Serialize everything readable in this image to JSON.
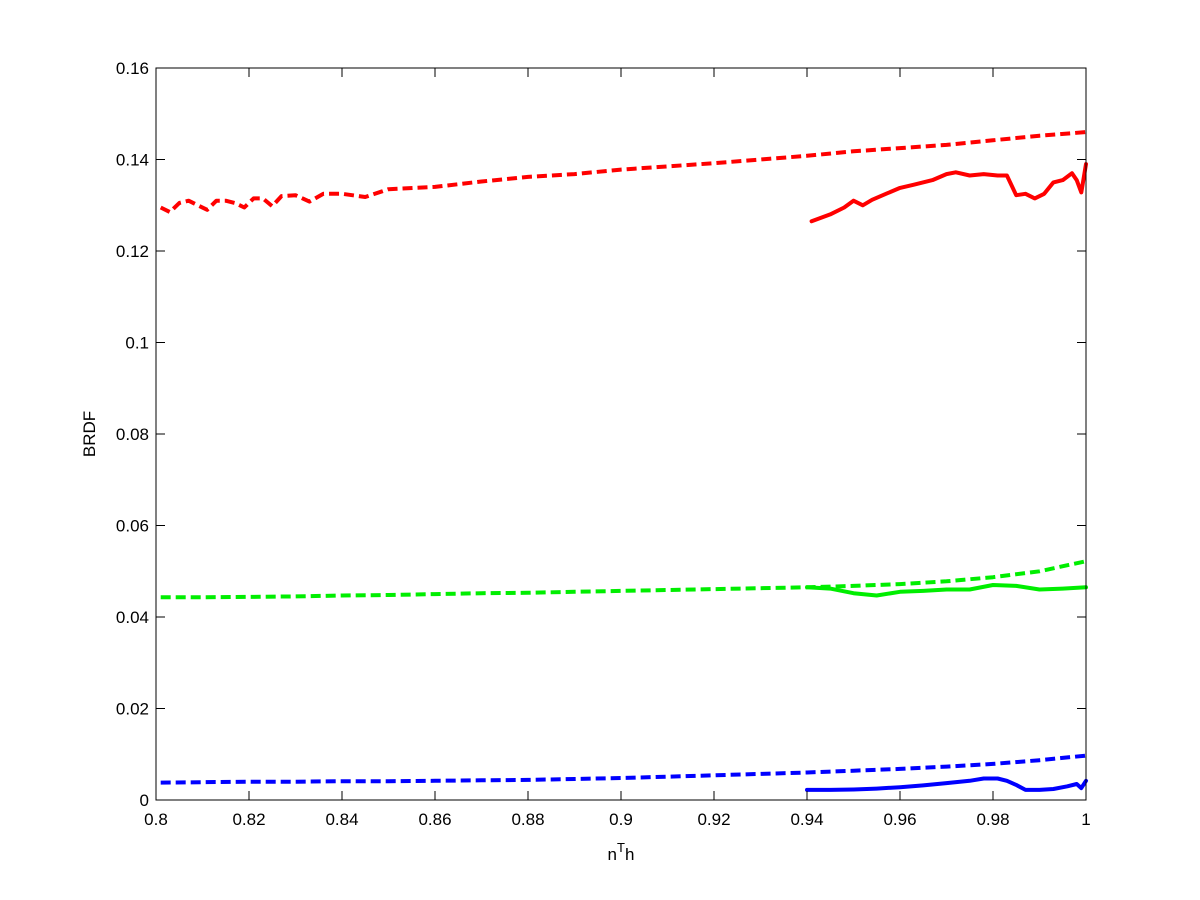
{
  "chart_data": {
    "type": "line",
    "title": "",
    "xlabel_base": "n",
    "xlabel_sup": "T",
    "xlabel_tail": "h",
    "ylabel": "BRDF",
    "xlim": [
      0.8,
      1.0
    ],
    "ylim": [
      0,
      0.16
    ],
    "xticks": [
      0.8,
      0.82,
      0.84,
      0.86,
      0.88,
      0.9,
      0.92,
      0.94,
      0.96,
      0.98,
      1.0
    ],
    "xtick_labels": [
      "0.8",
      "0.82",
      "0.84",
      "0.86",
      "0.88",
      "0.9",
      "0.92",
      "0.94",
      "0.96",
      "0.98",
      "1"
    ],
    "yticks": [
      0,
      0.02,
      0.04,
      0.06,
      0.08,
      0.1,
      0.12,
      0.14,
      0.16
    ],
    "ytick_labels": [
      "0",
      "0.02",
      "0.04",
      "0.06",
      "0.08",
      "0.1",
      "0.12",
      "0.14",
      "0.16"
    ],
    "grid": false,
    "legend": "none",
    "series": [
      {
        "color": "#ff0000",
        "style": "dashed",
        "x": [
          0.801,
          0.803,
          0.805,
          0.807,
          0.809,
          0.811,
          0.813,
          0.815,
          0.817,
          0.819,
          0.821,
          0.823,
          0.825,
          0.827,
          0.83,
          0.833,
          0.836,
          0.84,
          0.845,
          0.85,
          0.86,
          0.87,
          0.88,
          0.89,
          0.9,
          0.91,
          0.92,
          0.93,
          0.94,
          0.95,
          0.96,
          0.97,
          0.98,
          0.99,
          1.0
        ],
        "y": [
          0.1295,
          0.1285,
          0.1305,
          0.131,
          0.13,
          0.129,
          0.131,
          0.131,
          0.1305,
          0.1295,
          0.1315,
          0.1315,
          0.1298,
          0.132,
          0.1322,
          0.1308,
          0.1325,
          0.1325,
          0.1318,
          0.1335,
          0.134,
          0.1352,
          0.1362,
          0.1368,
          0.1378,
          0.1385,
          0.1392,
          0.14,
          0.1408,
          0.1418,
          0.1425,
          0.1432,
          0.1442,
          0.1452,
          0.146
        ]
      },
      {
        "color": "#ff0000",
        "style": "solid",
        "x": [
          0.941,
          0.945,
          0.948,
          0.95,
          0.952,
          0.954,
          0.957,
          0.96,
          0.963,
          0.967,
          0.97,
          0.972,
          0.975,
          0.978,
          0.981,
          0.983,
          0.985,
          0.987,
          0.989,
          0.991,
          0.993,
          0.995,
          0.997,
          0.998,
          0.999,
          1.0
        ],
        "y": [
          0.1265,
          0.128,
          0.1295,
          0.131,
          0.13,
          0.1312,
          0.1325,
          0.1338,
          0.1345,
          0.1355,
          0.1368,
          0.1372,
          0.1365,
          0.1368,
          0.1365,
          0.1365,
          0.1322,
          0.1325,
          0.1315,
          0.1325,
          0.135,
          0.1355,
          0.137,
          0.1355,
          0.1328,
          0.139
        ]
      },
      {
        "color": "#00ee00",
        "style": "dashed",
        "x": [
          0.801,
          0.81,
          0.82,
          0.83,
          0.84,
          0.85,
          0.86,
          0.87,
          0.88,
          0.89,
          0.9,
          0.91,
          0.92,
          0.93,
          0.94,
          0.95,
          0.96,
          0.97,
          0.98,
          0.99,
          1.0
        ],
        "y": [
          0.0443,
          0.0443,
          0.0444,
          0.0445,
          0.0447,
          0.0448,
          0.045,
          0.0452,
          0.0453,
          0.0455,
          0.0457,
          0.0459,
          0.0461,
          0.0463,
          0.0465,
          0.0468,
          0.0472,
          0.0478,
          0.0487,
          0.05,
          0.0522
        ]
      },
      {
        "color": "#00ee00",
        "style": "solid",
        "x": [
          0.94,
          0.945,
          0.95,
          0.955,
          0.96,
          0.965,
          0.97,
          0.975,
          0.98,
          0.985,
          0.99,
          0.995,
          1.0
        ],
        "y": [
          0.0465,
          0.0462,
          0.0452,
          0.0447,
          0.0455,
          0.0457,
          0.046,
          0.046,
          0.047,
          0.0468,
          0.046,
          0.0462,
          0.0465
        ]
      },
      {
        "color": "#0000ff",
        "style": "dashed",
        "x": [
          0.801,
          0.81,
          0.82,
          0.83,
          0.84,
          0.85,
          0.86,
          0.87,
          0.88,
          0.89,
          0.9,
          0.91,
          0.92,
          0.93,
          0.94,
          0.95,
          0.96,
          0.97,
          0.98,
          0.99,
          1.0
        ],
        "y": [
          0.0038,
          0.0039,
          0.004,
          0.004,
          0.0041,
          0.0041,
          0.0042,
          0.0043,
          0.0044,
          0.0046,
          0.0048,
          0.0051,
          0.0054,
          0.0057,
          0.006,
          0.0064,
          0.0068,
          0.0073,
          0.0079,
          0.0087,
          0.0097
        ]
      },
      {
        "color": "#0000ff",
        "style": "solid",
        "x": [
          0.94,
          0.945,
          0.95,
          0.955,
          0.96,
          0.965,
          0.97,
          0.975,
          0.978,
          0.981,
          0.983,
          0.985,
          0.987,
          0.99,
          0.993,
          0.996,
          0.998,
          0.999,
          1.0
        ],
        "y": [
          0.0022,
          0.0022,
          0.0023,
          0.0025,
          0.0028,
          0.0032,
          0.0037,
          0.0042,
          0.0047,
          0.0047,
          0.0042,
          0.0033,
          0.0022,
          0.0022,
          0.0024,
          0.003,
          0.0035,
          0.0026,
          0.0042
        ]
      }
    ]
  }
}
